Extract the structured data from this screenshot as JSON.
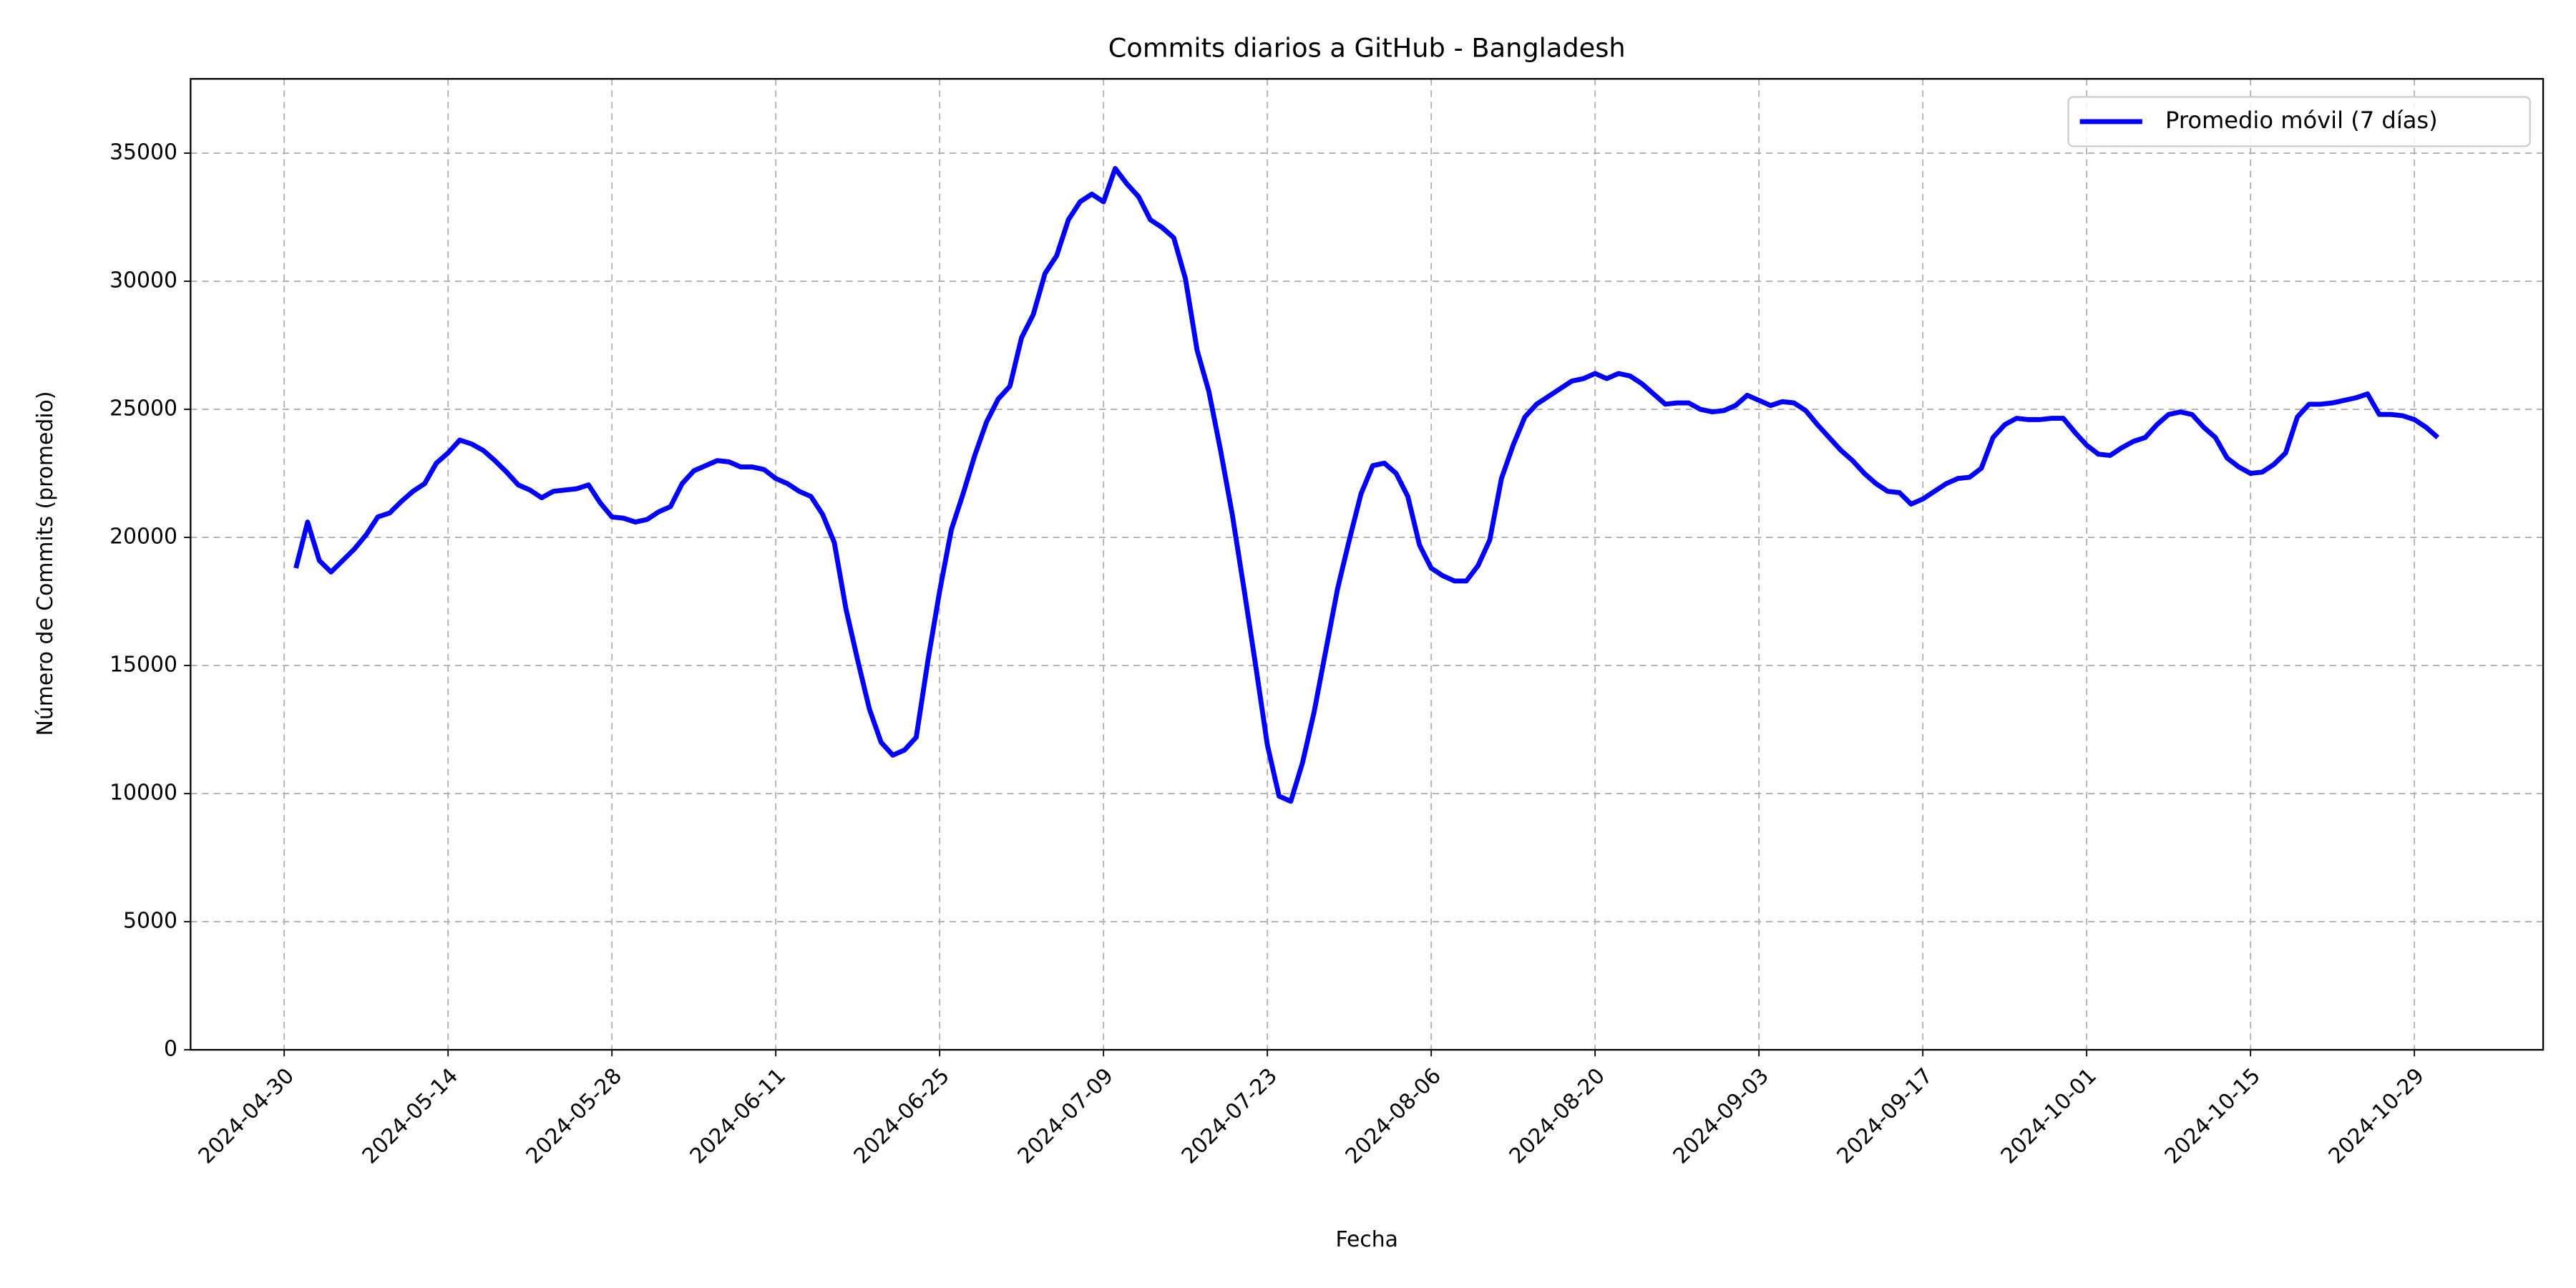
{
  "chart_data": {
    "type": "line",
    "title": "Commits diarios a GitHub - Bangladesh",
    "xlabel": "Fecha",
    "ylabel": "Número de Commits (promedio)",
    "x": [
      "2024-05-01",
      "2024-05-02",
      "2024-05-03",
      "2024-05-04",
      "2024-05-05",
      "2024-05-06",
      "2024-05-07",
      "2024-05-08",
      "2024-05-09",
      "2024-05-10",
      "2024-05-11",
      "2024-05-12",
      "2024-05-13",
      "2024-05-14",
      "2024-05-15",
      "2024-05-16",
      "2024-05-17",
      "2024-05-18",
      "2024-05-19",
      "2024-05-20",
      "2024-05-21",
      "2024-05-22",
      "2024-05-23",
      "2024-05-24",
      "2024-05-25",
      "2024-05-26",
      "2024-05-27",
      "2024-05-28",
      "2024-05-29",
      "2024-05-30",
      "2024-05-31",
      "2024-06-01",
      "2024-06-02",
      "2024-06-03",
      "2024-06-04",
      "2024-06-05",
      "2024-06-06",
      "2024-06-07",
      "2024-06-08",
      "2024-06-09",
      "2024-06-10",
      "2024-06-11",
      "2024-06-12",
      "2024-06-13",
      "2024-06-14",
      "2024-06-15",
      "2024-06-16",
      "2024-06-17",
      "2024-06-18",
      "2024-06-19",
      "2024-06-20",
      "2024-06-21",
      "2024-06-22",
      "2024-06-23",
      "2024-06-24",
      "2024-06-25",
      "2024-06-26",
      "2024-06-27",
      "2024-06-28",
      "2024-06-29",
      "2024-06-30",
      "2024-07-01",
      "2024-07-02",
      "2024-07-03",
      "2024-07-04",
      "2024-07-05",
      "2024-07-06",
      "2024-07-07",
      "2024-07-08",
      "2024-07-09",
      "2024-07-10",
      "2024-07-11",
      "2024-07-12",
      "2024-07-13",
      "2024-07-14",
      "2024-07-15",
      "2024-07-16",
      "2024-07-17",
      "2024-07-18",
      "2024-07-19",
      "2024-07-20",
      "2024-07-21",
      "2024-07-22",
      "2024-07-23",
      "2024-07-24",
      "2024-07-25",
      "2024-07-26",
      "2024-07-27",
      "2024-07-28",
      "2024-07-29",
      "2024-07-30",
      "2024-07-31",
      "2024-08-01",
      "2024-08-02",
      "2024-08-03",
      "2024-08-04",
      "2024-08-05",
      "2024-08-06",
      "2024-08-07",
      "2024-08-08",
      "2024-08-09",
      "2024-08-10",
      "2024-08-11",
      "2024-08-12",
      "2024-08-13",
      "2024-08-14",
      "2024-08-15",
      "2024-08-16",
      "2024-08-17",
      "2024-08-18",
      "2024-08-19",
      "2024-08-20",
      "2024-08-21",
      "2024-08-22",
      "2024-08-23",
      "2024-08-24",
      "2024-08-25",
      "2024-08-26",
      "2024-08-27",
      "2024-08-28",
      "2024-08-29",
      "2024-08-30",
      "2024-08-31",
      "2024-09-01",
      "2024-09-02",
      "2024-09-03",
      "2024-09-04",
      "2024-09-05",
      "2024-09-06",
      "2024-09-07",
      "2024-09-08",
      "2024-09-09",
      "2024-09-10",
      "2024-09-11",
      "2024-09-12",
      "2024-09-13",
      "2024-09-14",
      "2024-09-15",
      "2024-09-16",
      "2024-09-17",
      "2024-09-18",
      "2024-09-19",
      "2024-09-20",
      "2024-09-21",
      "2024-09-22",
      "2024-09-23",
      "2024-09-24",
      "2024-09-25",
      "2024-09-26",
      "2024-09-27",
      "2024-09-28",
      "2024-09-29",
      "2024-09-30",
      "2024-10-01",
      "2024-10-02",
      "2024-10-03",
      "2024-10-04",
      "2024-10-05",
      "2024-10-06",
      "2024-10-07",
      "2024-10-08",
      "2024-10-09",
      "2024-10-10",
      "2024-10-11",
      "2024-10-12",
      "2024-10-13",
      "2024-10-14",
      "2024-10-15",
      "2024-10-16",
      "2024-10-17",
      "2024-10-18",
      "2024-10-19",
      "2024-10-20",
      "2024-10-21",
      "2024-10-22",
      "2024-10-23",
      "2024-10-24",
      "2024-10-25",
      "2024-10-26",
      "2024-10-27",
      "2024-10-28",
      "2024-10-29",
      "2024-10-30",
      "2024-10-31"
    ],
    "series": [
      {
        "name": "Promedio móvil (7 días)",
        "color": "#0000ff",
        "values": [
          18800,
          20600,
          19100,
          18650,
          19100,
          19550,
          20100,
          20800,
          20950,
          21400,
          21800,
          22100,
          22900,
          23300,
          23800,
          23650,
          23400,
          23000,
          22550,
          22050,
          21850,
          21550,
          21800,
          21850,
          21900,
          22050,
          21350,
          20800,
          20750,
          20600,
          20700,
          21000,
          21200,
          22100,
          22600,
          22800,
          23000,
          22950,
          22750,
          22750,
          22650,
          22300,
          22100,
          21800,
          21600,
          20900,
          19800,
          17200,
          15200,
          13300,
          12000,
          11500,
          11700,
          12200,
          15200,
          17900,
          20300,
          21700,
          23200,
          24500,
          25400,
          25900,
          27800,
          28700,
          30300,
          31000,
          32400,
          33100,
          33400,
          33100,
          34400,
          33800,
          33300,
          32400,
          32100,
          31700,
          30100,
          27300,
          25700,
          23400,
          20900,
          18000,
          15000,
          11900,
          9900,
          9700,
          11200,
          13200,
          15600,
          18000,
          19900,
          21700,
          22800,
          22900,
          22500,
          21600,
          19700,
          18800,
          18500,
          18300,
          18300,
          18900,
          19900,
          22300,
          23600,
          24700,
          25200,
          25500,
          25800,
          26100,
          26200,
          26400,
          26200,
          26400,
          26300,
          26000,
          25600,
          25200,
          25250,
          25250,
          25000,
          24900,
          24950,
          25150,
          25550,
          25350,
          25150,
          25300,
          25250,
          24950,
          24400,
          23900,
          23400,
          23000,
          22500,
          22100,
          21800,
          21750,
          21300,
          21500,
          21800,
          22100,
          22300,
          22350,
          22700,
          23900,
          24400,
          24650,
          24600,
          24600,
          24650,
          24650,
          24100,
          23600,
          23250,
          23200,
          23500,
          23750,
          23900,
          24400,
          24800,
          24900,
          24800,
          24300,
          23900,
          23100,
          22750,
          22500,
          22550,
          22850,
          23300,
          24700,
          25200,
          25200,
          25250,
          25350,
          25450,
          25600,
          24800,
          24800,
          24750,
          24600,
          24300,
          23900
        ]
      }
    ],
    "xlim": [
      "2024-04-22",
      "2024-11-09"
    ],
    "xticks": [
      "2024-04-30",
      "2024-05-14",
      "2024-05-28",
      "2024-06-11",
      "2024-06-25",
      "2024-07-09",
      "2024-07-23",
      "2024-08-06",
      "2024-08-20",
      "2024-09-03",
      "2024-09-17",
      "2024-10-01",
      "2024-10-15",
      "2024-10-29"
    ],
    "ylim": [
      0,
      37900
    ],
    "yticks": [
      0,
      5000,
      10000,
      15000,
      20000,
      25000,
      30000,
      35000
    ],
    "grid": true,
    "legend": "upper right"
  }
}
